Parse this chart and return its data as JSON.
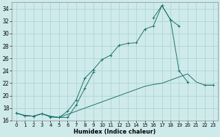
{
  "xlabel": "Humidex (Indice chaleur)",
  "background_color": "#ceeaea",
  "grid_color": "#aed4d4",
  "line_color": "#1a6e6a",
  "xlim": [
    -0.5,
    23.5
  ],
  "ylim": [
    16,
    35
  ],
  "xticks": [
    0,
    1,
    2,
    3,
    4,
    5,
    6,
    7,
    8,
    9,
    10,
    11,
    12,
    13,
    14,
    15,
    16,
    17,
    18,
    19,
    20,
    21,
    22,
    23
  ],
  "yticks": [
    16,
    18,
    20,
    22,
    24,
    26,
    28,
    30,
    32,
    34
  ],
  "series": [
    {
      "x": [
        0,
        1,
        2,
        3,
        4,
        5,
        6,
        7,
        8,
        9,
        10,
        11,
        12,
        13,
        14,
        15,
        16,
        17,
        18,
        19,
        20,
        21,
        22,
        23
      ],
      "y": [
        17.2,
        16.8,
        16.7,
        17.1,
        16.6,
        16.5,
        17.5,
        19.3,
        22.8,
        24.2,
        25.8,
        26.5,
        28.1,
        28.4,
        28.5,
        30.7,
        31.2,
        34.5,
        32.2,
        31.2,
        null,
        null,
        21.7,
        21.7
      ],
      "marker": true
    },
    {
      "x": [
        0,
        1,
        2,
        3,
        4,
        5,
        6,
        7,
        8,
        9,
        10,
        11,
        12,
        13,
        14,
        15,
        16,
        17,
        18,
        19,
        20,
        21,
        22,
        23
      ],
      "y": [
        17.2,
        16.8,
        16.7,
        17.1,
        16.6,
        16.5,
        16.5,
        18.5,
        21.2,
        23.8,
        null,
        null,
        null,
        null,
        null,
        null,
        32.5,
        34.5,
        32.2,
        24.0,
        22.2,
        null,
        null,
        null
      ],
      "marker": true
    },
    {
      "x": [
        0,
        1,
        2,
        3,
        4,
        5,
        6,
        7,
        8,
        9,
        10,
        11,
        12,
        13,
        14,
        15,
        16,
        17,
        18,
        19,
        20,
        21,
        22,
        23
      ],
      "y": [
        17.2,
        16.8,
        16.7,
        17.1,
        16.7,
        16.5,
        17.0,
        17.5,
        18.0,
        18.5,
        19.0,
        19.5,
        20.0,
        20.5,
        21.0,
        21.5,
        21.8,
        22.0,
        22.5,
        23.0,
        23.5,
        22.2,
        21.7,
        21.7
      ],
      "marker": false
    }
  ]
}
